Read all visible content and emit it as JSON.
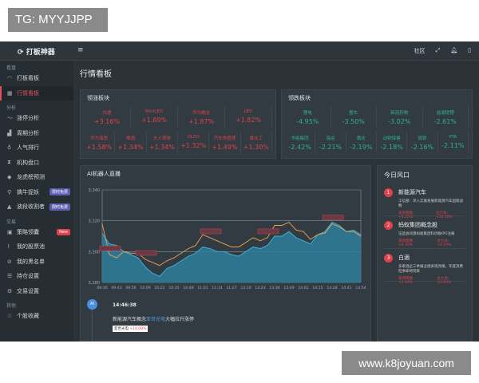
{
  "watermarks": {
    "top": "TG: MYYJJPP",
    "bottom": "www.k8joyuan.com"
  },
  "topbar": {
    "logo": "打板神器",
    "menu_icon": "hamburger-icon",
    "community": "社区",
    "icons": [
      "expand-icon",
      "bell-icon",
      "exit-icon"
    ]
  },
  "sidebar": {
    "sections": [
      {
        "title": "看盘",
        "items": [
          {
            "label": "打板看板",
            "icon": "gauge-icon"
          },
          {
            "label": "行情看板",
            "icon": "grid-icon",
            "active": true
          }
        ]
      },
      {
        "title": "分析",
        "items": [
          {
            "label": "涨停分析",
            "icon": "trend-icon"
          },
          {
            "label": "周期分析",
            "icon": "bar-chart-icon"
          },
          {
            "label": "人气排行",
            "icon": "fire-icon"
          },
          {
            "label": "机构盘口",
            "icon": "hourglass-icon"
          },
          {
            "label": "龙虎榜预测",
            "icon": "diamond-icon"
          },
          {
            "label": "擒牛捉妖",
            "icon": "key-icon",
            "badge": "限时免费"
          },
          {
            "label": "波段收割者",
            "icon": "mountain-icon",
            "badge": "限时免费"
          }
        ]
      },
      {
        "title": "交易",
        "items": [
          {
            "label": "策略领囊",
            "icon": "calendar-icon",
            "badge": "New"
          },
          {
            "label": "我的股票池",
            "icon": "pin-icon"
          },
          {
            "label": "我的黑名单",
            "icon": "block-icon"
          },
          {
            "label": "持仓设置",
            "icon": "list-icon"
          },
          {
            "label": "交易设置",
            "icon": "gear-icon"
          }
        ]
      },
      {
        "title": "其他",
        "items": [
          {
            "label": "个股收藏",
            "icon": "star-icon"
          }
        ]
      }
    ]
  },
  "main": {
    "title": "行情看板",
    "gainers": {
      "title": "领涨板块",
      "row1": [
        {
          "name": "白酒",
          "value": "+3.16%"
        },
        {
          "name": "MiniLED",
          "value": "+1.89%"
        },
        {
          "name": "华为概念",
          "value": "+1.87%"
        },
        {
          "name": "LED",
          "value": "+1.82%"
        }
      ],
      "row2": [
        {
          "name": "华为海思",
          "value": "+1.58%"
        },
        {
          "name": "啤酒",
          "value": "+1.34%"
        },
        {
          "name": "无人驾驶",
          "value": "+1.34%"
        },
        {
          "name": "OLED",
          "value": "+1.32%"
        },
        {
          "name": "汽车热管理",
          "value": "+1.49%"
        },
        {
          "name": "氟化工",
          "value": "+1.30%"
        }
      ]
    },
    "losers": {
      "title": "领跌板块",
      "row1": [
        {
          "name": "锂电",
          "value": "-4.95%"
        },
        {
          "name": "整车",
          "value": "-3.50%"
        },
        {
          "name": "新冠药物",
          "value": "-3.02%"
        },
        {
          "name": "盐湖提锂",
          "value": "-2.61%"
        }
      ],
      "row2": [
        {
          "name": "华能集团",
          "value": "-2.42%"
        },
        {
          "name": "海运",
          "value": "-2.21%"
        },
        {
          "name": "氟化",
          "value": "-2.19%"
        },
        {
          "name": "动物保健",
          "value": "-2.18%"
        },
        {
          "name": "钢铁",
          "value": "-2.16%"
        },
        {
          "name": "PTA",
          "value": "-2.11%"
        }
      ]
    },
    "live": {
      "title": "AI机器人直播",
      "avatar": "AI",
      "time": "14:46:38",
      "msg_pre": "新能源汽车概念",
      "msg_link": "亚世光电",
      "msg_post": "大幅拉升涨停",
      "tag_name": "亚世光电",
      "tag_value": "+10.00%"
    },
    "risk": {
      "title": "今日风口",
      "items": [
        {
          "no": "1",
          "title": "新能源汽车",
          "desc": "工信部：深入实施发展新能源汽车国家战略",
          "s1": "涨停家数：+2.20%",
          "s2": "主力净：+10.40%"
        },
        {
          "no": "2",
          "title": "蚂蚁集团概念股",
          "desc": "证监会同意蚂蚁集团科创板IPO注册",
          "s1": "涨停家数：+4.30%",
          "s2": "主力净：+4.10%"
        },
        {
          "no": "3",
          "title": "白酒",
          "desc": "多家酒企三季报业绩表现亮眼，年底消费旺季即将到来",
          "s1": "涨停家数：+3.16%",
          "s2": "主力净：+2.00%"
        }
      ]
    }
  },
  "fab_icon": "chat-icon",
  "chart_data": {
    "type": "area",
    "title": "AI机器人直播",
    "x_ticks": [
      "09:30",
      "09:43",
      "09:56",
      "10:09",
      "10:22",
      "10:35",
      "10:48",
      "11:01",
      "11:14",
      "11:27",
      "13:10",
      "13:23",
      "13:36",
      "13:49",
      "14:02",
      "14:15",
      "14:28",
      "14:41",
      "14:54"
    ],
    "ylim": [
      3280,
      3340
    ],
    "y_ticks": [
      "3,280",
      "3,300",
      "3,320",
      "3,340"
    ],
    "grid": true,
    "series": [
      {
        "color": "#3fb6d8",
        "fill": true,
        "values": [
          3312,
          3305,
          3304,
          3300,
          3298,
          3296,
          3290,
          3286,
          3284,
          3289,
          3291,
          3294,
          3297,
          3299,
          3303,
          3302,
          3300,
          3300,
          3298,
          3297,
          3300,
          3303,
          3302,
          3304,
          3310,
          3310,
          3313,
          3309,
          3307,
          3305,
          3311,
          3313,
          3319,
          3317,
          3313,
          3314,
          3311
        ]
      },
      {
        "color": "#e8a352",
        "fill": false,
        "values": [
          3318,
          3298,
          3296,
          3300,
          3299,
          3299,
          3295,
          3293,
          3291,
          3294,
          3296,
          3299,
          3302,
          3304,
          3311,
          3309,
          3307,
          3305,
          3303,
          3303,
          3306,
          3309,
          3307,
          3309,
          3317,
          3317,
          3319,
          3314,
          3313,
          3308,
          3311,
          3312,
          3318,
          3316,
          3313,
          3313,
          3310
        ]
      }
    ],
    "annotation_points": [
      1,
      6,
      15,
      23,
      32
    ]
  }
}
